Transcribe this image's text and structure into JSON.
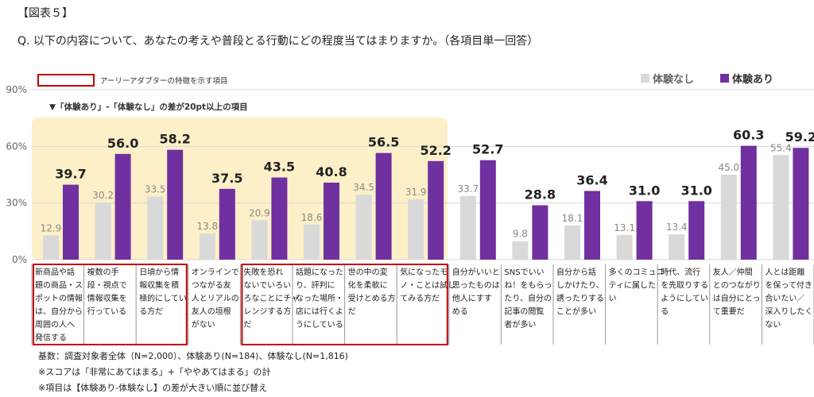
{
  "figure_label": "【図表５】",
  "question": "Q. 以下の内容について、あなたの考えや普段とる行動にどの程度当てはまりますか。（各項目単一回答）",
  "early_adopter_legend": "アーリーアダプターの特徴を示す項目",
  "highlight_note": "▼「体験あり」-「体験なし」の差が20pt以上の項目",
  "notes": [
    "基数：調査対象者全体（N=2,000）、体験あり(N=184)、体験なし(N=1,816)",
    "※スコアは「非常にあてはまる」+「ややあてはまる」の計",
    "※項目は【体験あり-体験なし】の差が大きい順に並び替え"
  ],
  "colors": {
    "without": "#d9d9d9",
    "with": "#7030a0",
    "highlight": "#fdf0c8",
    "frame": "#c00000"
  },
  "chart_data": {
    "type": "bar",
    "ylim": [
      0,
      90
    ],
    "yticks": [
      "0%",
      "30%",
      "60%",
      "90%"
    ],
    "categories": [
      "新商品や話題の商品・スポットの情報は、自分から周囲の人へ発信する",
      "複数の手段・視点で情報収集を行っている",
      "日頃から情報収集を積極的にしている方だ",
      "オンラインでつながる友人とリアルの友人の垣根がない",
      "失敗を恐れないでいろいろなことにチャレンジする方だ",
      "話題になったり、評判になった場所・店には行くようにしている",
      "世の中の変化を柔軟に受けとめる方だ",
      "気になったモノ・ことは試してみる方だ",
      "自分がいいと思ったものは他人にすすめる",
      "SNSでいいね！をもらったり、自分の記事の閲覧者が多い",
      "自分から話しかけたり、誘ったりすることが多い",
      "多くのコミュニティに属したい",
      "時代、流行を先取りするようにしている",
      "友人／仲間とのつながりは自分にとって重要だ",
      "人とは距離を保って付き合いたい／深入りしたくない"
    ],
    "series": [
      {
        "name": "体験なし",
        "values": [
          12.9,
          30.2,
          33.5,
          13.8,
          20.9,
          18.6,
          34.5,
          31.9,
          33.7,
          9.8,
          18.1,
          13.1,
          13.4,
          45.0,
          55.4
        ]
      },
      {
        "name": "体験あり",
        "values": [
          39.7,
          56.0,
          58.2,
          37.5,
          43.5,
          40.8,
          56.5,
          52.2,
          52.7,
          28.8,
          36.4,
          31.0,
          31.0,
          60.3,
          59.2
        ]
      }
    ],
    "value_labels_without": [
      "12.9",
      "30.2",
      "33.5",
      "13.8",
      "20.9",
      "18.6",
      "34.5",
      "31.9",
      "33.7",
      "9.8",
      "18.1",
      "13.1",
      "13.4",
      "45.0",
      "55.4"
    ],
    "value_labels_with": [
      "39.7",
      "56.0",
      "58.2",
      "37.5",
      "43.5",
      "40.8",
      "56.5",
      "52.2",
      "52.7",
      "28.8",
      "36.4",
      "31.0",
      "31.0",
      "60.3",
      "59.2"
    ],
    "category_lines": [
      [
        "新商品や話",
        "題の商品・ス",
        "ポットの情報",
        "は、自分から",
        "周囲の人へ",
        "発信する"
      ],
      [
        "複数の手",
        "段・視点で",
        "情報収集を",
        "行っている"
      ],
      [
        "日頃から情",
        "報収集を積",
        "極的にしてい",
        "る方だ"
      ],
      [
        "オンラインで",
        "つながる友",
        "人とリアルの",
        "友人の垣根",
        "がない"
      ],
      [
        "失敗を恐れ",
        "ないでいろい",
        "ろなことにチャ",
        "レンジする方",
        "だ"
      ],
      [
        "話題になった",
        "り、評判に",
        "なった場所・",
        "店には行くよ",
        "うにしている"
      ],
      [
        "世の中の変",
        "化を柔軟に",
        "受けとめる方",
        "だ"
      ],
      [
        "気になったモ",
        "ノ・ことは試し",
        "てみる方だ"
      ],
      [
        "自分がいいと",
        "思ったものは",
        "他人にすす",
        "める"
      ],
      [
        "SNSでいい",
        "ね！をもらっ",
        "たり、自分の",
        "記事の閲覧",
        "者が多い"
      ],
      [
        "自分から話",
        "しかけたり、",
        "誘ったりする",
        "ことが多い"
      ],
      [
        "多くのコミュニ",
        "ティに属した",
        "い"
      ],
      [
        "時代、流行",
        "を先取りする",
        "ようにしてい",
        "る"
      ],
      [
        "友人／仲間",
        "とのつながり",
        "は自分にとっ",
        "て重要だ"
      ],
      [
        "人とは距離",
        "を保って付き",
        "合いたい／",
        "深入りしたく",
        "ない"
      ]
    ],
    "highlighted_count": 8,
    "early_adopter_groups": [
      [
        0,
        2
      ],
      [
        4,
        7
      ]
    ],
    "legend_position": "top-right",
    "grid": true
  }
}
